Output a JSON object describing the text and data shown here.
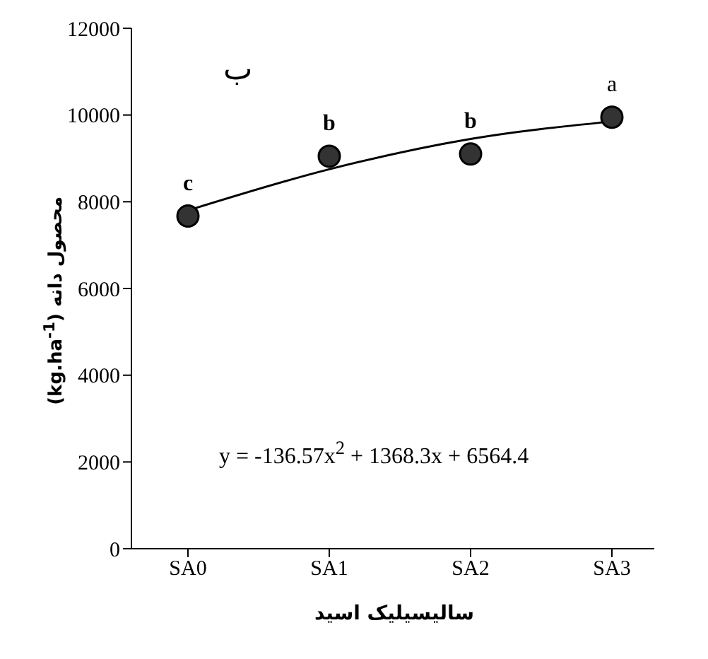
{
  "chart_data": {
    "type": "scatter",
    "categories": [
      "SA0",
      "SA1",
      "SA2",
      "SA3"
    ],
    "series": [
      {
        "type": "scatter",
        "color": "#333333",
        "marker": "circle",
        "values": [
          7670,
          9050,
          9100,
          9950
        ],
        "value_labels": [
          "c",
          "b",
          "b",
          "a"
        ]
      },
      {
        "type": "line",
        "color": "#000000",
        "marker": "none",
        "values": [
          7800,
          8750,
          9450,
          9850
        ]
      }
    ],
    "ylim": [
      0,
      12000
    ],
    "yticks": [
      0,
      2000,
      4000,
      6000,
      8000,
      10000,
      12000
    ],
    "xlabel": "سالیسیلیک اسید",
    "ylabel": "محصول دانه (kg.ha$^{-1}$)",
    "annotations": [
      "ب",
      "y = -136.57x$^{2}$ + 1368.3x + 6564.4"
    ],
    "grid": false,
    "legend": false
  }
}
